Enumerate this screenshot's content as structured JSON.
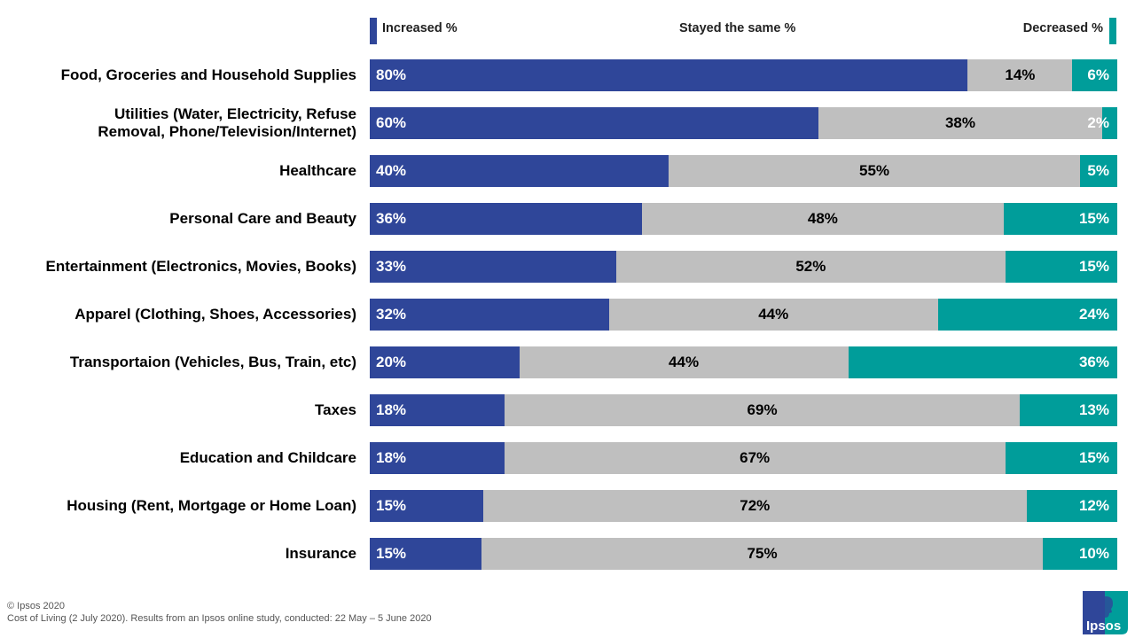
{
  "chart_data": {
    "type": "bar",
    "orientation": "horizontal",
    "stacked": true,
    "categories": [
      "Food, Groceries and Household Supplies",
      "Utilities (Water, Electricity, Refuse\nRemoval, Phone/Television/Internet)",
      "Healthcare",
      "Personal Care and Beauty",
      "Entertainment (Electronics, Movies, Books)",
      "Apparel (Clothing, Shoes, Accessories)",
      "Transportaion (Vehicles, Bus, Train, etc)",
      "Taxes",
      "Education and Childcare",
      "Housing (Rent, Mortgage or Home Loan)",
      "Insurance"
    ],
    "series": [
      {
        "name": "Increased %",
        "color": "#2f4699",
        "values": [
          80,
          60,
          40,
          36,
          33,
          32,
          20,
          18,
          18,
          15,
          15
        ]
      },
      {
        "name": "Stayed the same %",
        "color": "#bfbfbf",
        "values": [
          14,
          38,
          55,
          48,
          52,
          44,
          44,
          69,
          67,
          72,
          75
        ]
      },
      {
        "name": "Decreased %",
        "color": "#009d9a",
        "values": [
          6,
          2,
          5,
          15,
          15,
          24,
          36,
          13,
          15,
          12,
          10
        ]
      }
    ],
    "value_suffix": "%",
    "legend_placement": "top",
    "grid": false
  },
  "footer": {
    "copyright": "© Ipsos 2020",
    "source": "Cost of Living (2 July 2020). Results from an Ipsos online study, conducted: 22 May  – 5 June 2020"
  },
  "logo": {
    "text": "Ipsos",
    "colors": [
      "#2f4699",
      "#009d9a"
    ]
  }
}
